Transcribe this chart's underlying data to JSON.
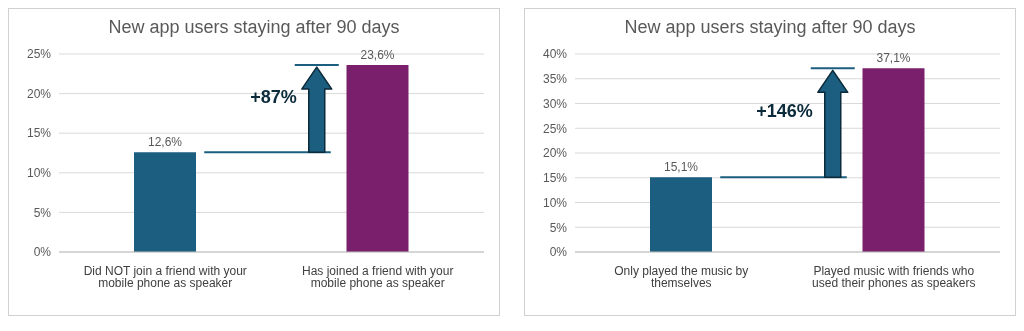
{
  "chart_data": [
    {
      "type": "bar",
      "title": "New app users staying after 90 days",
      "categories": [
        "Did NOT join a friend with your mobile phone as speaker",
        "Has joined a friend with your mobile phone as speaker"
      ],
      "values": [
        12.6,
        23.6
      ],
      "colors": [
        "#1b5e80",
        "#7a1f6b"
      ],
      "value_labels": [
        "12,6%",
        "23,6%"
      ],
      "ylim": [
        0,
        25
      ],
      "yticks": [
        {
          "value": 0,
          "label": "0%"
        },
        {
          "value": 5,
          "label": "5%"
        },
        {
          "value": 10,
          "label": "10%"
        },
        {
          "value": 15,
          "label": "15%"
        },
        {
          "value": 20,
          "label": "20%"
        },
        {
          "value": 25,
          "label": "25%"
        }
      ],
      "grid": "y",
      "annotations": [
        "+87%"
      ]
    },
    {
      "type": "bar",
      "title": "New app users staying after 90 days",
      "categories": [
        "Only played the music by themselves",
        "Played music with friends who used their phones as speakers"
      ],
      "values": [
        15.1,
        37.1
      ],
      "colors": [
        "#1b5e80",
        "#7a1f6b"
      ],
      "value_labels": [
        "15,1%",
        "37,1%"
      ],
      "ylim": [
        0,
        40
      ],
      "yticks": [
        {
          "value": 0,
          "label": "0%"
        },
        {
          "value": 5,
          "label": "5%"
        },
        {
          "value": 10,
          "label": "10%"
        },
        {
          "value": 15,
          "label": "15%"
        },
        {
          "value": 20,
          "label": "20%"
        },
        {
          "value": 25,
          "label": "25%"
        },
        {
          "value": 30,
          "label": "30%"
        },
        {
          "value": 35,
          "label": "35%"
        },
        {
          "value": 40,
          "label": "40%"
        }
      ],
      "grid": "y",
      "annotations": [
        "+146%"
      ]
    }
  ]
}
